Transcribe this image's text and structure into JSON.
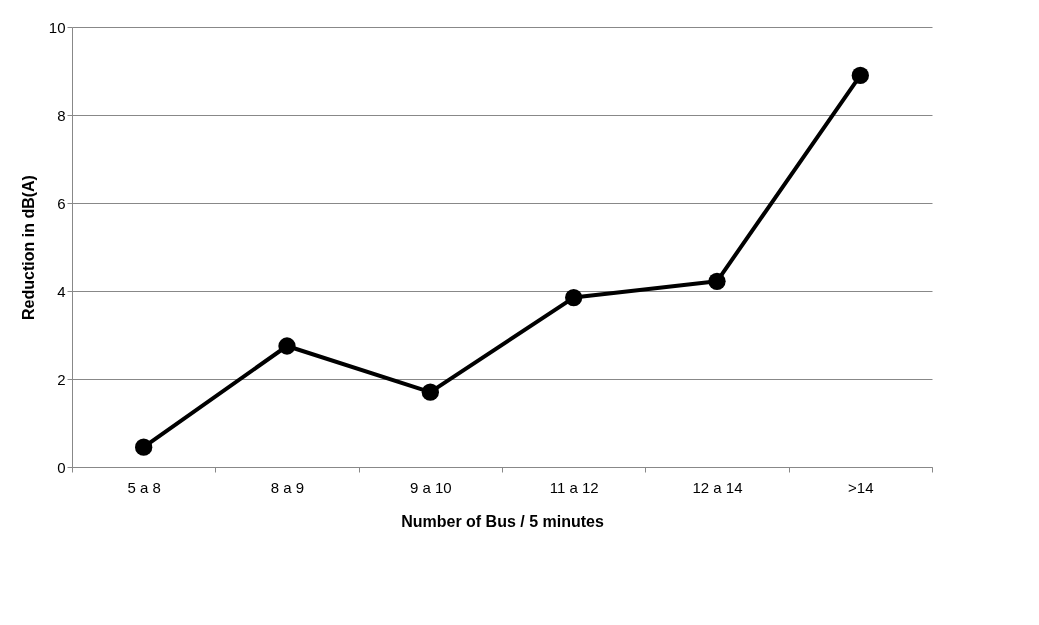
{
  "chart_data": {
    "type": "line",
    "xlabel": "Number of Bus / 5 minutes",
    "ylabel": "Reduction in dB(A)",
    "categories": [
      "5 a 8",
      "8 a 9",
      "9 a 10",
      "11 a 12",
      "12 a 14",
      ">14"
    ],
    "series": [
      {
        "color": "#000000",
        "values": [
          0.45,
          2.75,
          1.7,
          3.85,
          4.22,
          8.9
        ]
      }
    ],
    "ylim": [
      0,
      10
    ],
    "yticks": [
      0,
      2,
      4,
      6,
      8,
      10
    ],
    "grid": "y",
    "marker": "circle",
    "line_style": "solid"
  }
}
